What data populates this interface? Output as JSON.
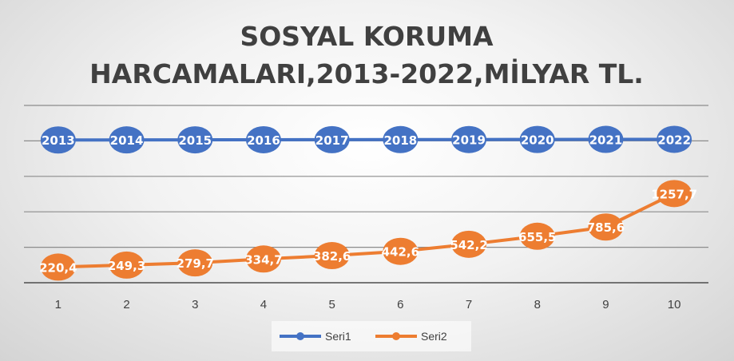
{
  "chart_data": {
    "type": "line",
    "title": [
      "SOSYAL KORUMA",
      "HARCAMALARI,2013-2022,MİLYAR TL."
    ],
    "categories": [
      "1",
      "2",
      "3",
      "4",
      "5",
      "6",
      "7",
      "8",
      "9",
      "10"
    ],
    "series": [
      {
        "name": "Seri1",
        "color": "#4472c4",
        "values": [
          2013,
          2014,
          2015,
          2016,
          2017,
          2018,
          2019,
          2020,
          2021,
          2022
        ],
        "labels": [
          "2013",
          "2014",
          "2015",
          "2016",
          "2017",
          "2018",
          "2019",
          "2020",
          "2021",
          "2022"
        ]
      },
      {
        "name": "Seri2",
        "color": "#ed7d31",
        "values": [
          220.4,
          249.3,
          279.7,
          334.7,
          382.6,
          442.6,
          542.2,
          655.5,
          785.6,
          1257.7
        ],
        "labels": [
          "220,4",
          "249,3",
          "279,7",
          "334,7",
          "382,6",
          "442,6",
          "542,2",
          "655,5",
          "785,6",
          "1257,7"
        ]
      }
    ],
    "ylim": [
      0,
      2500
    ],
    "y_ticks": [
      0,
      500,
      1000,
      1500,
      2000,
      2500
    ],
    "y_tick_labels_visible": false,
    "grid": true,
    "legend": "bottom",
    "xlabel": "",
    "ylabel": ""
  }
}
